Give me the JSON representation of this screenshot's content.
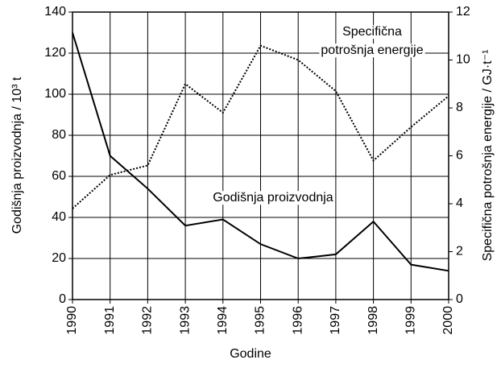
{
  "chart_data": {
    "type": "line",
    "x_label": "Godine",
    "y_label": "Godišnja proizvodnja / 10³ t",
    "y2_label": "Specifična potrošnja energije / GJ·t⁻¹",
    "categories": [
      "1990",
      "1991",
      "1992",
      "1993",
      "1994",
      "1995",
      "1996",
      "1997",
      "1998",
      "1999",
      "2000"
    ],
    "series": [
      {
        "color": "#000000",
        "style": "solid",
        "values": [
          130,
          70,
          54,
          36,
          39,
          27,
          20,
          22,
          38,
          17,
          14
        ]
      },
      {
        "color": "#000000",
        "style": "dotted",
        "axis": "y2",
        "values": [
          3.8,
          5.2,
          5.6,
          9.0,
          7.8,
          10.6,
          10.0,
          8.7,
          5.8,
          7.2,
          8.5
        ]
      }
    ],
    "annotations": [
      "Specifična",
      "potrošnja energije",
      "Godišnja proizvodnja"
    ],
    "ylim": [
      0,
      140
    ],
    "yticks": [
      0,
      20,
      40,
      60,
      80,
      100,
      120,
      140
    ],
    "y2lim": [
      0,
      12
    ],
    "y2ticks": [
      0,
      2,
      4,
      6,
      8,
      10,
      12
    ],
    "grid": true
  }
}
